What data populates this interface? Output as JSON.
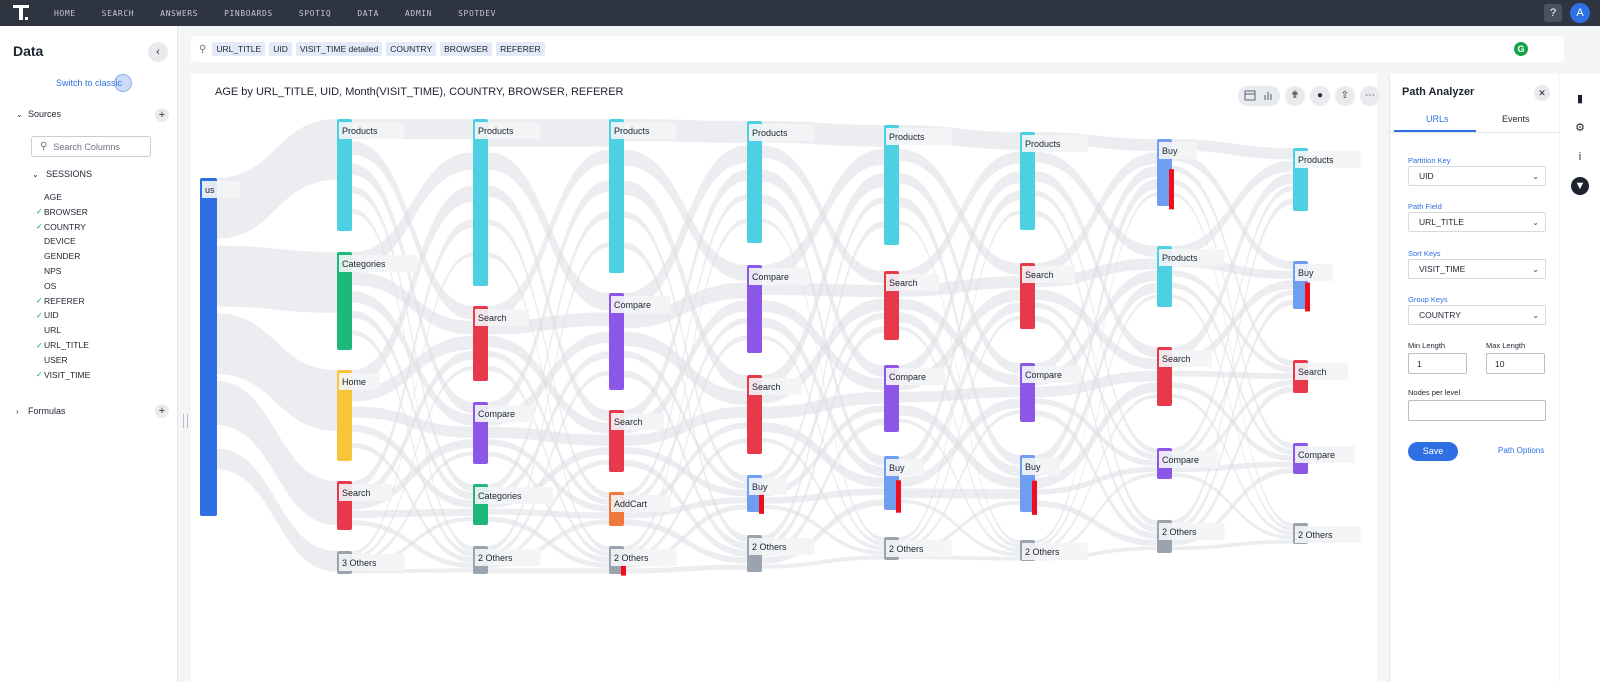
{
  "nav": {
    "items": [
      "HOME",
      "SEARCH",
      "ANSWERS",
      "PINBOARDS",
      "SPOTIQ",
      "DATA",
      "ADMIN",
      "SPOTDEV"
    ],
    "help_label": "?",
    "avatar_initial": "A"
  },
  "left_panel": {
    "title": "Data",
    "collapse_icon": "chevron-left-icon",
    "switch_classic": "Switch to classic",
    "sources_label": "Sources",
    "search_placeholder": "Search Columns",
    "table_name": "SESSIONS",
    "columns": [
      {
        "name": "AGE",
        "checked": false
      },
      {
        "name": "BROWSER",
        "checked": true
      },
      {
        "name": "COUNTRY",
        "checked": true
      },
      {
        "name": "DEVICE",
        "checked": false
      },
      {
        "name": "GENDER",
        "checked": false
      },
      {
        "name": "NPS",
        "checked": false
      },
      {
        "name": "OS",
        "checked": false
      },
      {
        "name": "REFERER",
        "checked": true
      },
      {
        "name": "UID",
        "checked": true
      },
      {
        "name": "URL",
        "checked": false
      },
      {
        "name": "URL_TITLE",
        "checked": true
      },
      {
        "name": "USER",
        "checked": false
      },
      {
        "name": "VISIT_TIME",
        "checked": true
      }
    ],
    "formulas_label": "Formulas"
  },
  "search_bar": {
    "tokens": [
      "URL_TITLE",
      "UID",
      "VISIT_TIME detailed",
      "COUNTRY",
      "BROWSER",
      "REFERER"
    ],
    "grammarly_letter": "G"
  },
  "chart": {
    "title": "AGE by URL_TITLE, UID, Month(VISIT_TIME), COUNTRY, BROWSER, REFERER"
  },
  "colors": {
    "Products": "#4dd0e1",
    "Categories": "#1db87a",
    "Home": "#f8c53a",
    "Search": "#e8394a",
    "Others": "#9aa3ae",
    "Compare": "#8c57e8",
    "AddCart": "#f0783c",
    "Buy": "#6f9ef0",
    "us": "#2f6fe4",
    "flow": "#dcdfe4",
    "accent": "#2f6fe4"
  },
  "chart_data": {
    "type": "sankey",
    "levels": [
      [
        {
          "label": "us"
        }
      ],
      [
        {
          "label": "Products"
        },
        {
          "label": "Categories"
        },
        {
          "label": "Home"
        },
        {
          "label": "Search"
        },
        {
          "label": "3 Others"
        }
      ],
      [
        {
          "label": "Products"
        },
        {
          "label": "Search"
        },
        {
          "label": "Compare"
        },
        {
          "label": "Categories"
        },
        {
          "label": "2 Others"
        }
      ],
      [
        {
          "label": "Products"
        },
        {
          "label": "Compare"
        },
        {
          "label": "Search"
        },
        {
          "label": "AddCart"
        },
        {
          "label": "2 Others"
        }
      ],
      [
        {
          "label": "Products"
        },
        {
          "label": "Compare"
        },
        {
          "label": "Search"
        },
        {
          "label": "Buy"
        },
        {
          "label": "2 Others"
        }
      ],
      [
        {
          "label": "Products"
        },
        {
          "label": "Search"
        },
        {
          "label": "Compare"
        },
        {
          "label": "Buy"
        },
        {
          "label": "2 Others"
        }
      ],
      [
        {
          "label": "Products"
        },
        {
          "label": "Search"
        },
        {
          "label": "Compare"
        },
        {
          "label": "Buy"
        },
        {
          "label": "2 Others"
        }
      ],
      [
        {
          "label": "Buy"
        },
        {
          "label": "Products"
        },
        {
          "label": "Search"
        },
        {
          "label": "Compare"
        },
        {
          "label": "2 Others"
        }
      ],
      [
        {
          "label": "Products"
        },
        {
          "label": "Buy"
        },
        {
          "label": "Search"
        },
        {
          "label": "Compare"
        },
        {
          "label": "2 Others"
        }
      ]
    ]
  },
  "path_analyzer": {
    "title": "Path Analyzer",
    "tabs": [
      "URLs",
      "Events"
    ],
    "partition_key_label": "Partition Key",
    "partition_key_value": "UID",
    "path_field_label": "Path Field",
    "path_field_value": "URL_TITLE",
    "sort_keys_label": "Sort Keys",
    "sort_keys_value": "VISIT_TIME",
    "group_keys_label": "Group Keys",
    "group_keys_value": "COUNTRY",
    "min_length_label": "Min Length",
    "min_length_value": "1",
    "max_length_label": "Max Length",
    "max_length_value": "10",
    "nodes_per_level_label": "Nodes per level",
    "nodes_per_level_value": "",
    "save_label": "Save",
    "options_label": "Path Options"
  }
}
